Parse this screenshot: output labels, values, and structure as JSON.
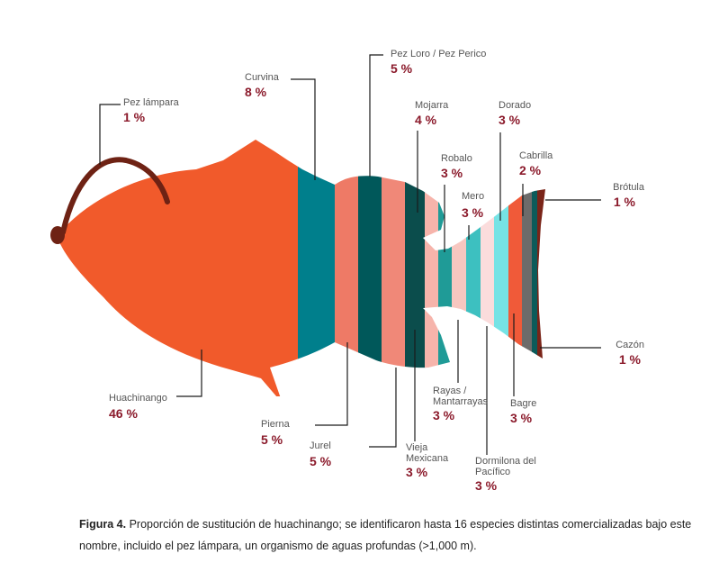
{
  "chart_data": {
    "type": "pictorial-stacked",
    "title": "Proporción de sustitución de huachinango",
    "unit": "%",
    "segments": [
      {
        "name": "Huachinango",
        "value": 46,
        "pct_label": "46 %",
        "color": "#f15a2b"
      },
      {
        "name": "Curvina",
        "value": 8,
        "pct_label": "8 %",
        "color": "#007f8c"
      },
      {
        "name": "Pierna",
        "value": 5,
        "pct_label": "5 %",
        "color": "#ee7a66"
      },
      {
        "name": "Pez Loro / Pez Perico",
        "value": 5,
        "pct_label": "5 %",
        "color": "#00585a"
      },
      {
        "name": "Jurel",
        "value": 5,
        "pct_label": "5 %",
        "color": "#f08878"
      },
      {
        "name": "Mojarra",
        "value": 4,
        "pct_label": "4 %",
        "color": "#0b4d4c"
      },
      {
        "name": "Vieja Mexicana",
        "value": 3,
        "pct_label": "3 %",
        "color": "#f6b4ab"
      },
      {
        "name": "Robalo",
        "value": 3,
        "pct_label": "3 %",
        "color": "#1f9b97"
      },
      {
        "name": "Rayas / Mantarrayas",
        "value": 3,
        "pct_label": "3 %",
        "color": "#f7c7c0"
      },
      {
        "name": "Mero",
        "value": 3,
        "pct_label": "3 %",
        "color": "#3dc0c0"
      },
      {
        "name": "Dormilona del Pacífico",
        "value": 3,
        "pct_label": "3 %",
        "color": "#fbdcdc"
      },
      {
        "name": "Dorado",
        "value": 3,
        "pct_label": "3 %",
        "color": "#76e3e5"
      },
      {
        "name": "Bagre",
        "value": 3,
        "pct_label": "3 %",
        "color": "#f05a39"
      },
      {
        "name": "Cabrilla",
        "value": 2,
        "pct_label": "2 %",
        "color": "#6d6b6a"
      },
      {
        "name": "Brótula",
        "value": 1,
        "pct_label": "1 %",
        "color": "#0c5b5a"
      },
      {
        "name": "Cazón",
        "value": 1,
        "pct_label": "1 %",
        "color": "#7a2418"
      }
    ],
    "extra_label": {
      "name": "Pez lámpara",
      "value": 1,
      "pct_label": "1 %",
      "color": "#6e2214"
    }
  },
  "caption": {
    "figure_label": "Figura 4.",
    "text": "Proporción de sustitución de huachinango; se identificaron hasta 16 especies distintas comercializadas bajo este nombre, incluido el pez lámpara, un organismo de aguas profundas (>1,000 m)."
  }
}
